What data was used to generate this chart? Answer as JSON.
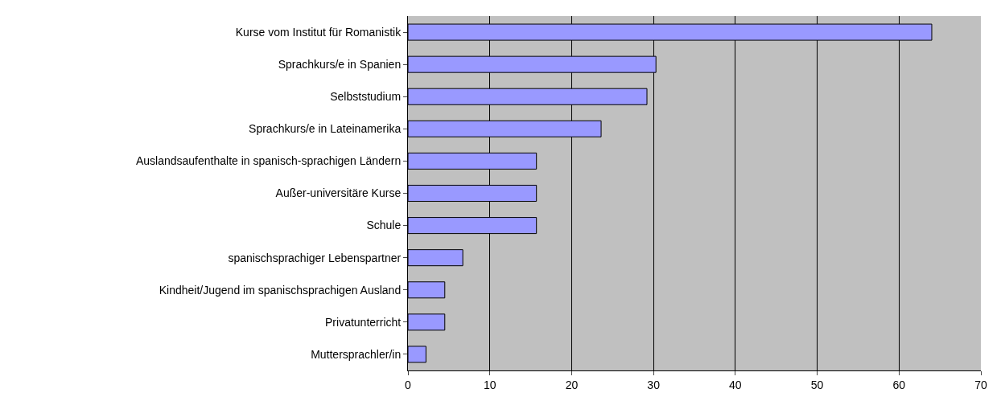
{
  "chart_data": {
    "type": "bar",
    "orientation": "horizontal",
    "categories": [
      "Kurse vom Institut für Romanistik",
      "Sprachkurs/e in Spanien",
      "Selbststudium",
      "Sprachkurs/e in Lateinamerika",
      "Auslandsaufenthalte in spanisch-sprachigen Ländern",
      "Außer-universitäre Kurse",
      "Schule",
      "spanischsprachiger Lebenspartner",
      "Kindheit/Jugend im spanischsprachigen Ausland",
      "Privatunterricht",
      "Muttersprachler/in"
    ],
    "values": [
      64.0,
      30.3,
      29.2,
      23.6,
      15.7,
      15.7,
      15.7,
      6.7,
      4.5,
      4.5,
      2.2
    ],
    "color": "#9999ff",
    "xlim": [
      0,
      70
    ],
    "xticks": [
      0,
      10,
      20,
      30,
      40,
      50,
      60,
      70
    ],
    "grid": "x"
  }
}
